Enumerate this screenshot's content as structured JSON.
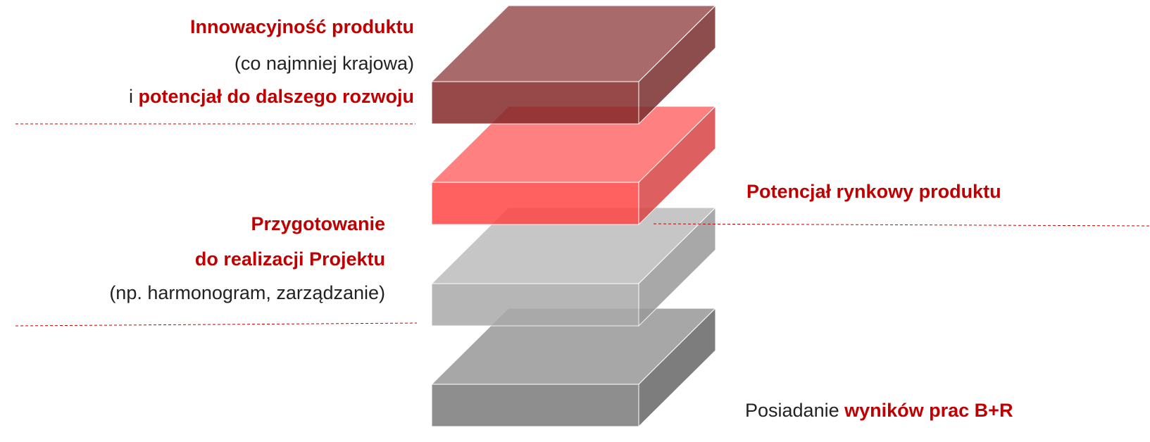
{
  "labels": [
    {
      "lines": [
        [
          "Innowacyjność produktu"
        ],
        [
          "(co najmniej krajowa)"
        ],
        [
          "i",
          "potencjał do dalszego rozwoju"
        ]
      ]
    },
    {
      "lines": [
        [
          "Potencjał rynkowy produktu"
        ]
      ]
    },
    {
      "lines": [
        [
          "Przygotowanie"
        ],
        [
          "do realizacji Projektu"
        ],
        [
          "(np. harmonogram, zarządzanie)"
        ]
      ]
    },
    {
      "lines": [
        [
          "Posiadanie",
          "wyników prac B+R"
        ]
      ]
    }
  ]
}
